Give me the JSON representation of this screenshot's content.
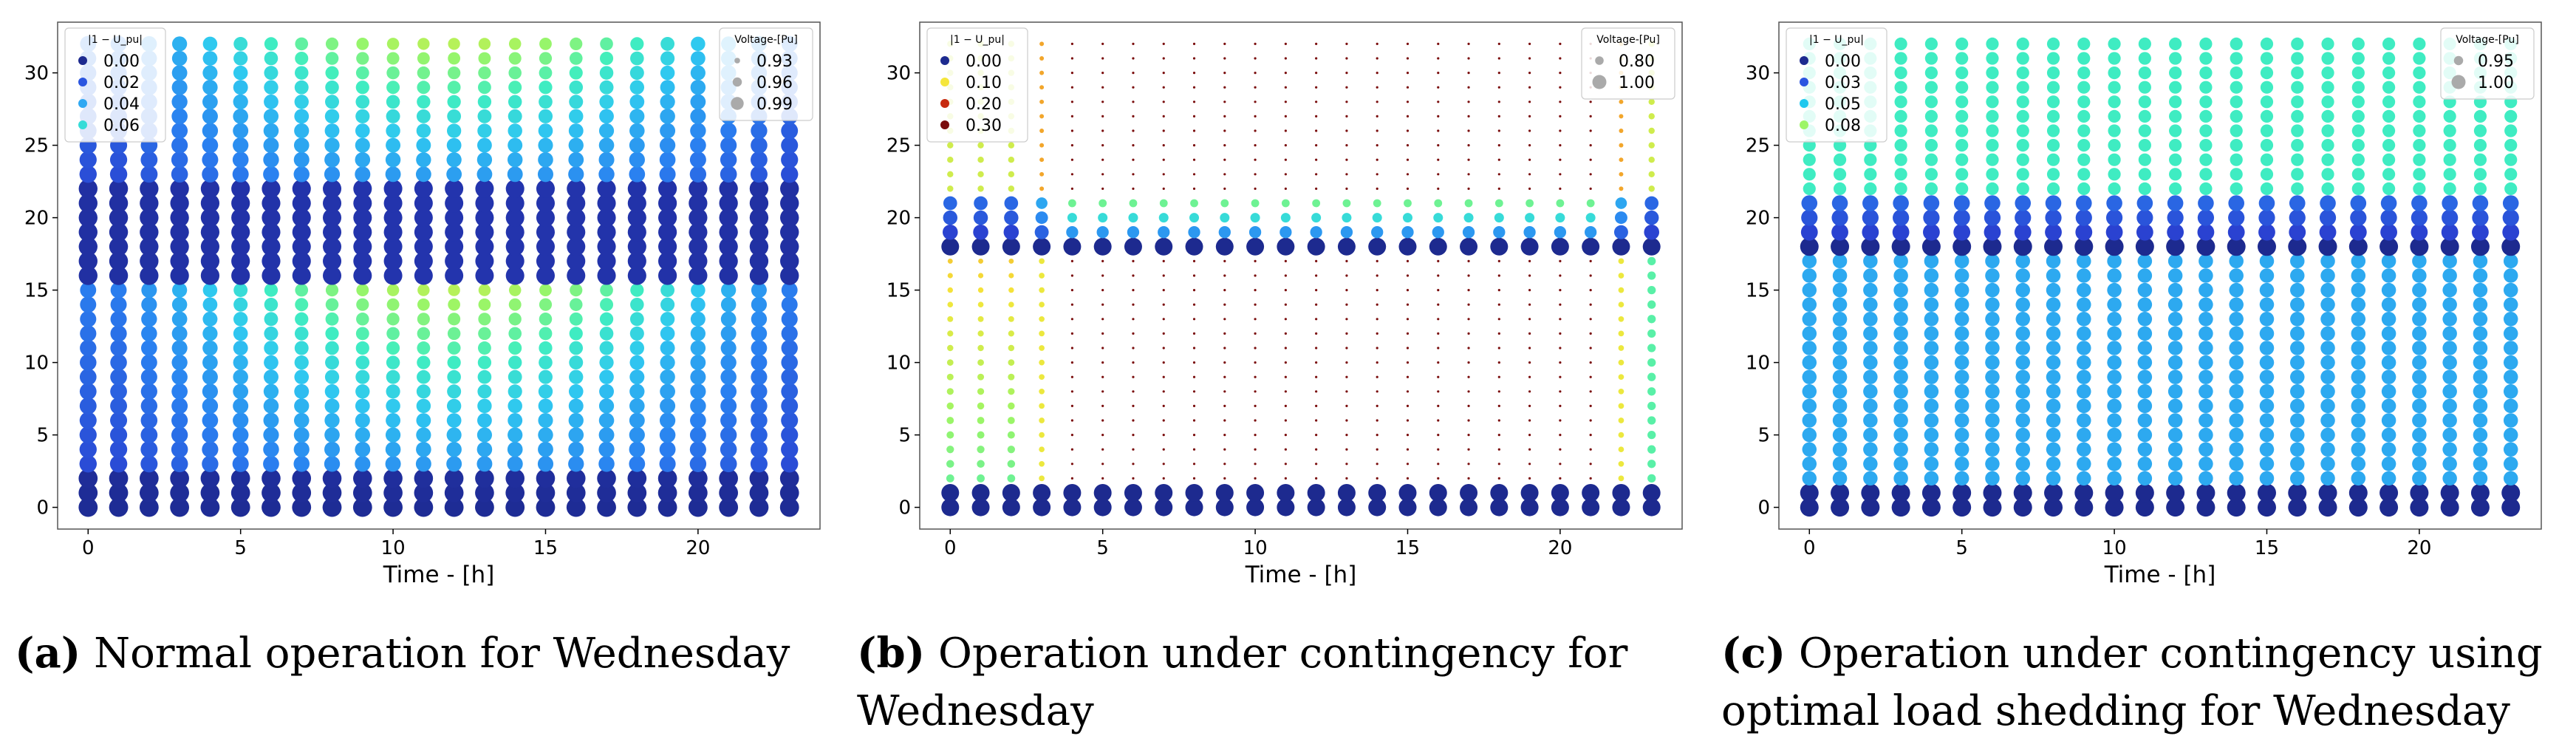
{
  "figure": {
    "panels": [
      {
        "id": "a",
        "caption_tag": "(a)",
        "caption_text": "Normal operation for Wednesday",
        "chart_data": {
          "type": "scatter",
          "xlabel": "Time - [h]",
          "ylabel": "",
          "xlim": [
            -1,
            24
          ],
          "ylim": [
            -1.5,
            33.5
          ],
          "xticks": [
            0,
            5,
            10,
            15,
            20
          ],
          "yticks": [
            0,
            5,
            10,
            15,
            20,
            25,
            30
          ],
          "x": [
            0,
            1,
            2,
            3,
            4,
            5,
            6,
            7,
            8,
            9,
            10,
            11,
            12,
            13,
            14,
            15,
            16,
            17,
            18,
            19,
            20,
            21,
            22,
            23
          ],
          "color_legend_title": "|1 − U_pu|",
          "color_legend": [
            {
              "label": "0.00",
              "color": "#1d2a8f"
            },
            {
              "label": "0.02",
              "color": "#2a55e0"
            },
            {
              "label": "0.04",
              "color": "#2fa8f2"
            },
            {
              "label": "0.06",
              "color": "#36dcd8"
            }
          ],
          "size_legend_title": "Voltage-[Pu]",
          "size_legend": [
            {
              "label": "0.93",
              "value": 0.93
            },
            {
              "label": "0.96",
              "value": 0.96
            },
            {
              "label": "0.99",
              "value": 0.99
            }
          ],
          "voltage_range": [
            0.92,
            1.0
          ],
          "deviation_range": [
            0.0,
            0.08
          ],
          "buses": "0–32 at each hour; deviation low at buses 0–2 and 16–22, rising toward buses 3–15 and 23–32, largest at midday hours"
        }
      },
      {
        "id": "b",
        "caption_tag": "(b)",
        "caption_text": "Operation under contingency for Wednesday",
        "chart_data": {
          "type": "scatter",
          "xlabel": "Time - [h]",
          "ylabel": "",
          "xlim": [
            -1,
            24
          ],
          "ylim": [
            -1.5,
            33.5
          ],
          "xticks": [
            0,
            5,
            10,
            15,
            20
          ],
          "yticks": [
            0,
            5,
            10,
            15,
            20,
            25,
            30
          ],
          "x": [
            0,
            1,
            2,
            3,
            4,
            5,
            6,
            7,
            8,
            9,
            10,
            11,
            12,
            13,
            14,
            15,
            16,
            17,
            18,
            19,
            20,
            21,
            22,
            23
          ],
          "color_legend_title": "|1 − U_pu|",
          "color_legend": [
            {
              "label": "0.00",
              "color": "#1d2a8f"
            },
            {
              "label": "0.10",
              "color": "#f5e63a"
            },
            {
              "label": "0.20",
              "color": "#c72a10"
            },
            {
              "label": "0.30",
              "color": "#7a0d0d"
            }
          ],
          "size_legend_title": "Voltage-[Pu]",
          "size_legend": [
            {
              "label": "0.80",
              "value": 0.8
            },
            {
              "label": "1.00",
              "value": 1.0
            }
          ],
          "voltage_range": [
            0.65,
            1.0
          ],
          "deviation_range": [
            0.0,
            0.35
          ],
          "buses": "0–32 at each hour; buses 0,1,18 stay near 1.0 pu; buses 2–17 and 22–32 drop sharply during daytime hours"
        }
      },
      {
        "id": "c",
        "caption_tag": "(c)",
        "caption_text": "Operation under contingency using optimal load shedding for Wednesday",
        "chart_data": {
          "type": "scatter",
          "xlabel": "Time - [h]",
          "ylabel": "",
          "xlim": [
            -1,
            24
          ],
          "ylim": [
            -1.5,
            33.5
          ],
          "xticks": [
            0,
            5,
            10,
            15,
            20
          ],
          "yticks": [
            0,
            5,
            10,
            15,
            20,
            25,
            30
          ],
          "x": [
            0,
            1,
            2,
            3,
            4,
            5,
            6,
            7,
            8,
            9,
            10,
            11,
            12,
            13,
            14,
            15,
            16,
            17,
            18,
            19,
            20,
            21,
            22,
            23
          ],
          "color_legend_title": "|1 − U_pu|",
          "color_legend": [
            {
              "label": "0.00",
              "color": "#1d2a8f"
            },
            {
              "label": "0.03",
              "color": "#2a55e0"
            },
            {
              "label": "0.05",
              "color": "#1fc8ee"
            },
            {
              "label": "0.08",
              "color": "#9cf566"
            }
          ],
          "size_legend_title": "Voltage-[Pu]",
          "size_legend": [
            {
              "label": "0.95",
              "value": 0.95
            },
            {
              "label": "1.00",
              "value": 1.0
            }
          ],
          "voltage_range": [
            0.9,
            1.0
          ],
          "deviation_range": [
            0.0,
            0.1
          ],
          "buses": "0–32 at each hour; buses 0,1,18 near 1.0 pu, buses 19–21 small deviation, buses 2–17 moderate, buses 22–32 largest"
        }
      }
    ]
  }
}
